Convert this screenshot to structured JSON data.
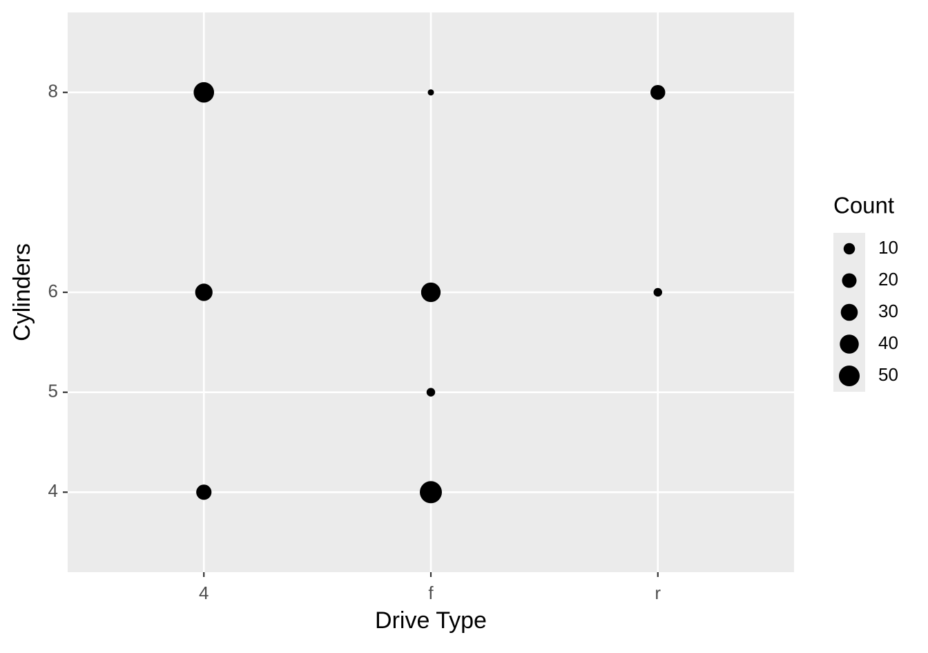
{
  "chart_data": {
    "type": "scatter",
    "x_label": "Drive Type",
    "y_label": "Cylinders",
    "categories": [
      "4",
      "f",
      "r"
    ],
    "x": [
      "4",
      "4",
      "4",
      "f",
      "f",
      "f",
      "f",
      "r",
      "r"
    ],
    "y": [
      4,
      6,
      8,
      4,
      5,
      6,
      8,
      6,
      8
    ],
    "sizes": [
      23,
      32,
      48,
      58,
      4,
      43,
      1,
      4,
      21
    ],
    "color": "#000000",
    "ylim": [
      3.2,
      8.8
    ],
    "yticks": [
      4,
      5,
      6,
      8
    ],
    "grid": true,
    "size_legend": {
      "title": "Count",
      "values": [
        10,
        20,
        30,
        40,
        50
      ]
    }
  }
}
